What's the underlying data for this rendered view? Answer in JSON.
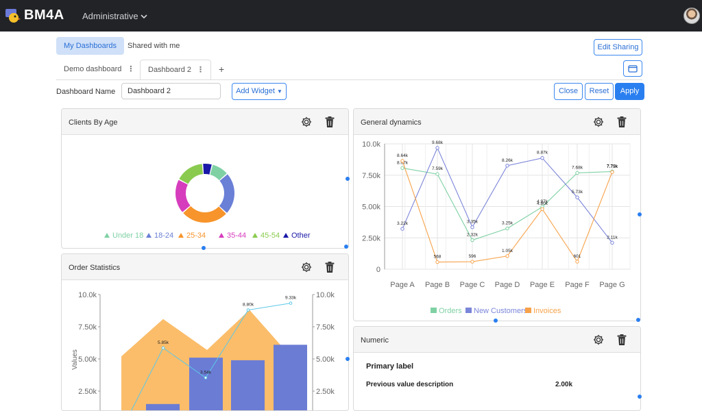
{
  "app": {
    "name": "BM4A",
    "workspace": "Administrative"
  },
  "top_tabs": {
    "my": "My Dashboards",
    "shared": "Shared with me"
  },
  "edit_sharing": "Edit Sharing",
  "dashboard_tabs": [
    "Demo dashboard",
    "Dashboard 2"
  ],
  "add_tab": "+",
  "form": {
    "name_label": "Dashboard Name",
    "name_value": "Dashboard 2",
    "add_widget": "Add Widget"
  },
  "actions": {
    "close": "Close",
    "reset": "Reset",
    "apply": "Apply"
  },
  "widgets": {
    "clients_by_age": {
      "title": "Clients By Age",
      "chart_data": {
        "type": "pie",
        "categories": [
          "Under 18",
          "18-24",
          "25-34",
          "35-44",
          "45-54",
          "Other"
        ],
        "values": [
          9,
          22,
          25,
          18,
          15,
          5
        ],
        "colors": [
          "#7fd1a4",
          "#6a7fd6",
          "#f7942b",
          "#d63dbd",
          "#8acb4f",
          "#1a19a8"
        ],
        "legend": "bottom"
      }
    },
    "general_dynamics": {
      "title": "General dynamics",
      "chart_data": {
        "type": "line",
        "categories": [
          "Page A",
          "Page B",
          "Page C",
          "Page D",
          "Page E",
          "Page F",
          "Page G"
        ],
        "ylim": [
          0,
          10000
        ],
        "yticks": [
          "0",
          "2.50k",
          "5.00k",
          "7.50k",
          "10.0k"
        ],
        "series": [
          {
            "name": "Orders",
            "color": "#7fd1a4",
            "values": [
              8070,
              7590,
              2320,
              3250,
              4970,
              7680,
              7790
            ],
            "labels": [
              "8.07k",
              "7.59k",
              "2.32k",
              "3.25k",
              "4.97k",
              "7.68k",
              "7.79k"
            ]
          },
          {
            "name": "New Customers",
            "color": "#7b85d9",
            "values": [
              3220,
              9680,
              3350,
              8260,
              8870,
              5730,
              2110
            ],
            "labels": [
              "3.22k",
              "9.68k",
              "3.35k",
              "8.26k",
              "8.87k",
              "5.73k",
              "2.11k"
            ]
          },
          {
            "name": "Invoices",
            "color": "#f7a24a",
            "values": [
              8640,
              568,
              596,
              1050,
              4800,
              601,
              7750
            ],
            "labels": [
              "8.64k",
              "568",
              "596",
              "1.05k",
              "4.80k",
              "601",
              "7.75k"
            ]
          }
        ]
      }
    },
    "order_statistics": {
      "title": "Order Statistics",
      "chart_data": {
        "type": "bar",
        "ylabel": "Values",
        "ylim": [
          0,
          10000
        ],
        "yticks": [
          "2.50k",
          "5.00k",
          "7.50k",
          "10.0k"
        ],
        "area": [
          5200,
          8100,
          5700,
          8800,
          5200
        ],
        "bars": [
          1500,
          5100,
          4900,
          6100
        ],
        "line": [
          {
            "value": 5850,
            "label": "5.85k"
          },
          {
            "value": 3540,
            "label": "3.54k"
          },
          {
            "value": 8800,
            "label": "8.80k"
          },
          {
            "value": 9330,
            "label": "9.33k"
          }
        ]
      }
    },
    "numeric": {
      "title": "Numeric",
      "primary_label": "Primary label",
      "prev_desc": "Previous value description",
      "prev_value": "2.00k"
    }
  }
}
